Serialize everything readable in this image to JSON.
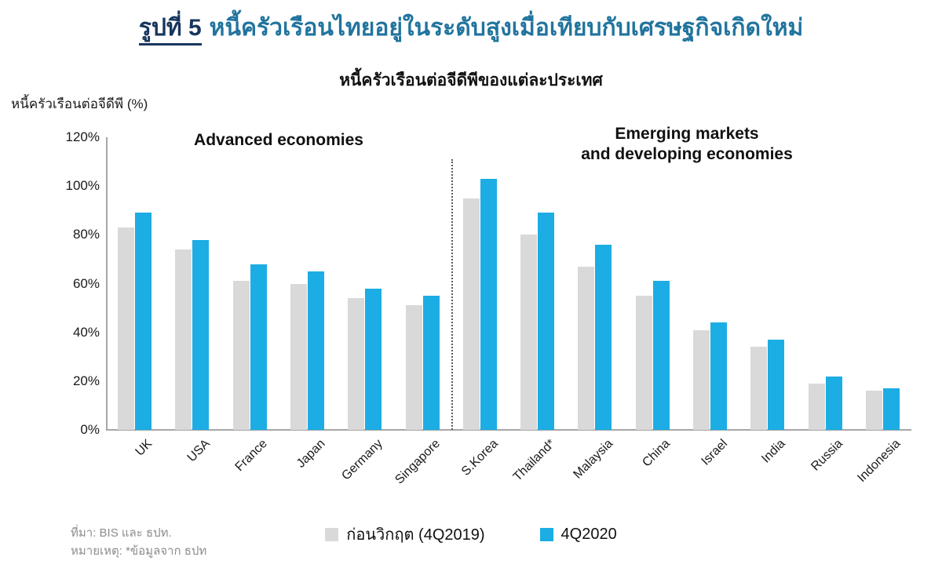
{
  "header": {
    "figure_label": "รูปที่ 5",
    "title": "หนี้ครัวเรือนไทยอยู่ในระดับสูงเมื่อเทียบกับเศรษฐกิจเกิดใหม่"
  },
  "chart": {
    "subtitle": "หนี้ครัวเรือนต่อจีดีพีของแต่ละประเทศ",
    "axis_unit_label": "หนี้ครัวเรือนต่อจีดีพี (%)"
  },
  "section_headings": {
    "left": "Advanced economies",
    "right_line1": "Emerging markets",
    "right_line2": "and developing economies"
  },
  "chart_data": {
    "type": "bar",
    "title": "หนี้ครัวเรือนต่อจีดีพีของแต่ละประเทศ",
    "ylabel": "หนี้ครัวเรือนต่อจีดีพี (%)",
    "ylim": [
      0,
      120
    ],
    "ytick_step": 20,
    "yticks": [
      "0%",
      "20%",
      "40%",
      "60%",
      "80%",
      "100%",
      "120%"
    ],
    "grid": false,
    "legend_position": "bottom",
    "categories": [
      "UK",
      "USA",
      "France",
      "Japan",
      "Germany",
      "Singapore",
      "S.Korea",
      "Thailand*",
      "Malaysia",
      "China",
      "Israel",
      "India",
      "Russia",
      "Indonesia"
    ],
    "groups": [
      {
        "label": "Advanced economies",
        "categories": [
          "UK",
          "USA",
          "France",
          "Japan",
          "Germany",
          "Singapore"
        ]
      },
      {
        "label": "Emerging markets and developing economies",
        "categories": [
          "S.Korea",
          "Thailand*",
          "Malaysia",
          "China",
          "Israel",
          "India",
          "Russia",
          "Indonesia"
        ]
      }
    ],
    "series": [
      {
        "name": "ก่อนวิกฤต (4Q2019)",
        "color": "#d9d9d9",
        "values": [
          83,
          74,
          61,
          60,
          54,
          51,
          95,
          80,
          67,
          55,
          41,
          34,
          19,
          16
        ]
      },
      {
        "name": "4Q2020",
        "color": "#1cade4",
        "values": [
          89,
          78,
          68,
          65,
          58,
          55,
          103,
          89,
          76,
          61,
          44,
          37,
          22,
          17
        ]
      }
    ]
  },
  "legend": {
    "items": [
      {
        "label": "ก่อนวิกฤต (4Q2019)",
        "color": "#d9d9d9"
      },
      {
        "label": "4Q2020",
        "color": "#1cade4"
      }
    ]
  },
  "notes": {
    "source": "ที่มา: BIS  และ ธปท.",
    "remark": "หมายเหตุ: *ข้อมูลจาก ธปท"
  },
  "colors": {
    "figure_label_navy": "#17365d",
    "title_blue": "#21749e",
    "bar_gray": "#d9d9d9",
    "bar_blue": "#1cade4",
    "axis_gray": "#a6a6a6",
    "notes_gray": "#8c8c8c"
  }
}
